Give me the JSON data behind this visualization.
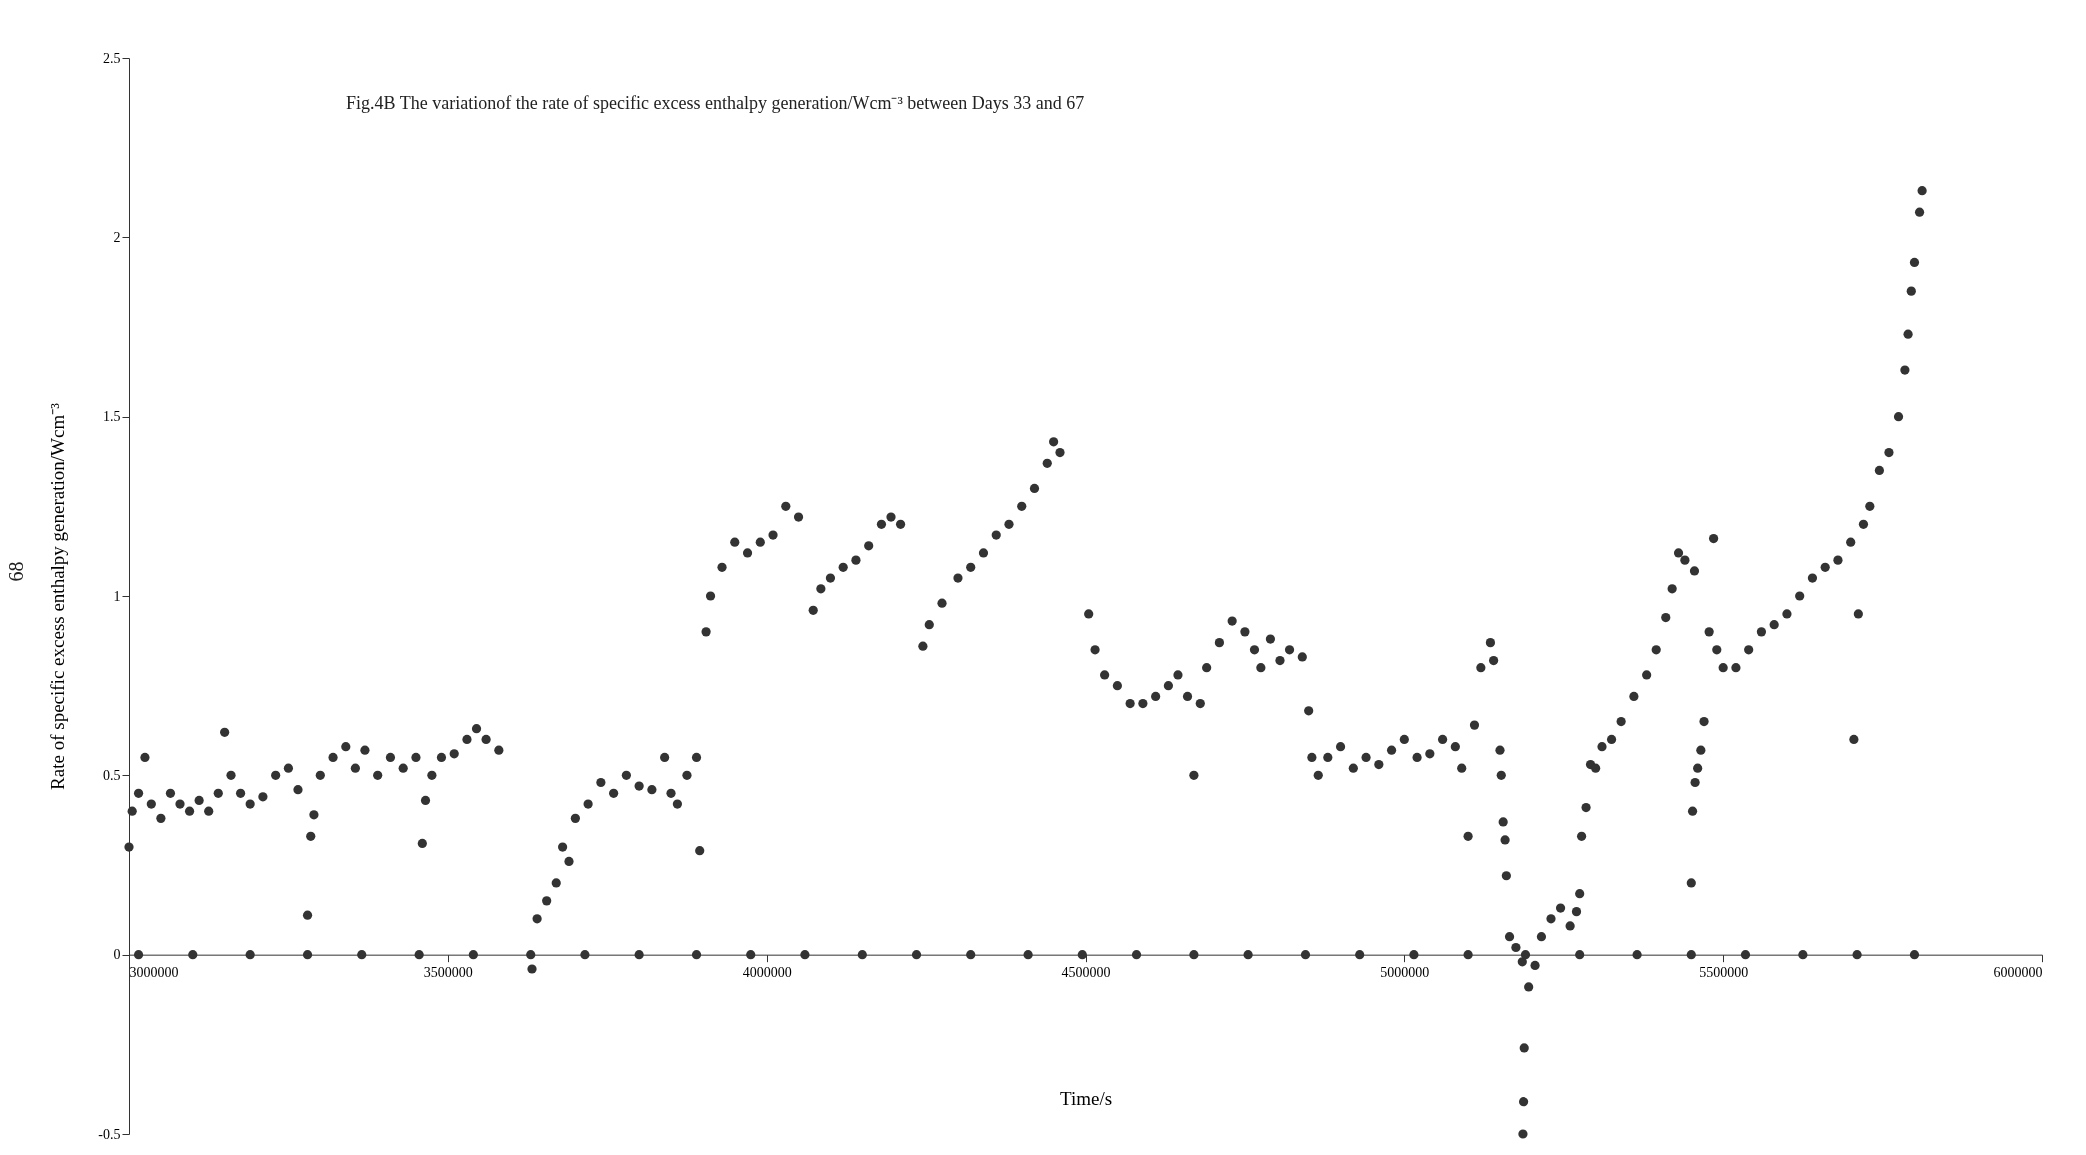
{
  "chart_data": {
    "type": "scatter",
    "title": "Fig.4B   The variationof the rate of specific excess enthalpy  generation/Wcm⁻³ between Days 33 and 67",
    "xlabel": "Time/s",
    "ylabel": "Rate of specific excess enthalpy generation/Wcm⁻³",
    "annotations": [
      "68"
    ],
    "xlim": [
      3000000,
      6000000
    ],
    "xticks": [
      3000000,
      3500000,
      4000000,
      4500000,
      5000000,
      5500000,
      6000000
    ],
    "ylim": [
      -0.5,
      2.5
    ],
    "yticks": [
      -0.5,
      0,
      0.5,
      1,
      1.5,
      2,
      2.5
    ],
    "grid": false,
    "marker": "circle",
    "series": [
      {
        "color": "#333333",
        "x": [
          3015000,
          3100000,
          3190000,
          3280000,
          3365000,
          3455000,
          3540000,
          3630000,
          3715000,
          3800000,
          3890000,
          3975000,
          4060000,
          4150000,
          4235000,
          4320000,
          4410000,
          4495000,
          4580000,
          4670000,
          4755000,
          4845000,
          4930000,
          5015000,
          5100000,
          5190000,
          5275000,
          5365000,
          5450000,
          5535000,
          5625000,
          5710000,
          5800000
        ],
        "values": [
          0,
          0,
          0,
          0,
          0,
          0,
          0,
          0,
          0,
          0,
          0,
          0,
          0,
          0,
          0,
          0,
          0,
          0,
          0,
          0,
          0,
          0,
          0,
          0,
          0,
          0,
          0,
          0,
          0,
          0,
          0,
          0,
          0
        ]
      },
      {
        "color": "#333333",
        "x": [
          3000000,
          3005000,
          3015000,
          3025000,
          3035000,
          3050000,
          3065000,
          3080000,
          3095000,
          3110000,
          3125000,
          3140000,
          3150000,
          3160000,
          3175000,
          3190000,
          3210000,
          3230000,
          3250000,
          3265000,
          3280000,
          3285000,
          3290000,
          3300000,
          3320000,
          3340000,
          3355000,
          3370000,
          3390000,
          3410000,
          3430000,
          3450000,
          3460000,
          3465000,
          3475000,
          3490000,
          3510000,
          3530000,
          3545000,
          3560000,
          3580000,
          3632000,
          3640000,
          3655000,
          3670000,
          3680000,
          3690000,
          3700000,
          3720000,
          3740000,
          3760000,
          3780000,
          3800000,
          3820000,
          3840000,
          3850000,
          3860000,
          3875000,
          3890000,
          3895000,
          3905000,
          3912000,
          3930000,
          3950000,
          3970000,
          3990000,
          4010000,
          4030000,
          4050000,
          4073000,
          4085000,
          4100000,
          4120000,
          4140000,
          4160000,
          4180000,
          4195000,
          4210000,
          4245000,
          4255000,
          4275000,
          4300000,
          4320000,
          4340000,
          4360000,
          4380000,
          4400000,
          4420000,
          4440000,
          4450000,
          4460000,
          4505000,
          4515000,
          4530000,
          4550000,
          4570000,
          4590000,
          4610000,
          4630000,
          4645000,
          4660000,
          4670000,
          4680000,
          4690000,
          4710000,
          4730000,
          4750000,
          4765000,
          4775000,
          4790000,
          4805000,
          4820000,
          4840000,
          4850000,
          4855000,
          4865000,
          4880000,
          4900000,
          4920000,
          4940000,
          4960000,
          4980000,
          5000000,
          5020000,
          5040000,
          5060000,
          5080000,
          5090000,
          5100000,
          5110000,
          5120000,
          5135000,
          5140000,
          5150000,
          5152000,
          5155000,
          5158000,
          5160000,
          5165000,
          5175000,
          5185000,
          5186000,
          5187000,
          5188000,
          5195000,
          5205000,
          5215000,
          5230000,
          5245000,
          5260000,
          5270000,
          5275000,
          5278000,
          5285000,
          5292000,
          5300000,
          5310000,
          5325000,
          5340000,
          5360000,
          5380000,
          5395000,
          5410000,
          5420000,
          5430000,
          5440000,
          5450000,
          5452000,
          5455000,
          5456000,
          5460000,
          5465000,
          5470000,
          5478000,
          5485000,
          5490000,
          5500000,
          5520000,
          5540000,
          5560000,
          5580000,
          5600000,
          5620000,
          5640000,
          5660000,
          5680000,
          5700000,
          5705000,
          5712000,
          5720000,
          5730000,
          5745000,
          5760000,
          5775000,
          5785000,
          5790000,
          5795000,
          5800000,
          5808000,
          5812000
        ],
        "values": [
          0.3,
          0.4,
          0.45,
          0.55,
          0.42,
          0.38,
          0.45,
          0.42,
          0.4,
          0.43,
          0.4,
          0.45,
          0.62,
          0.5,
          0.45,
          0.42,
          0.44,
          0.5,
          0.52,
          0.46,
          0.11,
          0.33,
          0.39,
          0.5,
          0.55,
          0.58,
          0.52,
          0.57,
          0.5,
          0.55,
          0.52,
          0.55,
          0.31,
          0.43,
          0.5,
          0.55,
          0.56,
          0.6,
          0.63,
          0.6,
          0.57,
          -0.04,
          0.1,
          0.15,
          0.2,
          0.3,
          0.26,
          0.38,
          0.42,
          0.48,
          0.45,
          0.5,
          0.47,
          0.46,
          0.55,
          0.45,
          0.42,
          0.5,
          0.55,
          0.29,
          0.9,
          1.0,
          1.08,
          1.15,
          1.12,
          1.15,
          1.17,
          1.25,
          1.22,
          0.96,
          1.02,
          1.05,
          1.08,
          1.1,
          1.14,
          1.2,
          1.22,
          1.2,
          0.86,
          0.92,
          0.98,
          1.05,
          1.08,
          1.12,
          1.17,
          1.2,
          1.25,
          1.3,
          1.37,
          1.43,
          1.4,
          0.95,
          0.85,
          0.78,
          0.75,
          0.7,
          0.7,
          0.72,
          0.75,
          0.78,
          0.72,
          0.5,
          0.7,
          0.8,
          0.87,
          0.93,
          0.9,
          0.85,
          0.8,
          0.88,
          0.82,
          0.85,
          0.83,
          0.68,
          0.55,
          0.5,
          0.55,
          0.58,
          0.52,
          0.55,
          0.53,
          0.57,
          0.6,
          0.55,
          0.56,
          0.6,
          0.58,
          0.52,
          0.33,
          0.64,
          0.8,
          0.87,
          0.82,
          0.57,
          0.5,
          0.37,
          0.32,
          0.22,
          0.05,
          0.02,
          -0.02,
          -0.5,
          -0.41,
          -0.26,
          -0.09,
          -0.03,
          0.05,
          0.1,
          0.13,
          0.08,
          0.12,
          0.17,
          0.33,
          0.41,
          0.53,
          0.52,
          0.58,
          0.6,
          0.65,
          0.72,
          0.78,
          0.85,
          0.94,
          1.02,
          1.12,
          1.1,
          0.2,
          0.4,
          1.07,
          0.48,
          0.52,
          0.57,
          0.65,
          0.9,
          1.16,
          0.85,
          0.8,
          0.8,
          0.85,
          0.9,
          0.92,
          0.95,
          1.0,
          1.05,
          1.08,
          1.1,
          1.15,
          0.6,
          0.95,
          1.2,
          1.25,
          1.35,
          1.4,
          1.5,
          1.63,
          1.73,
          1.85,
          1.93,
          2.07,
          2.13
        ]
      }
    ]
  }
}
